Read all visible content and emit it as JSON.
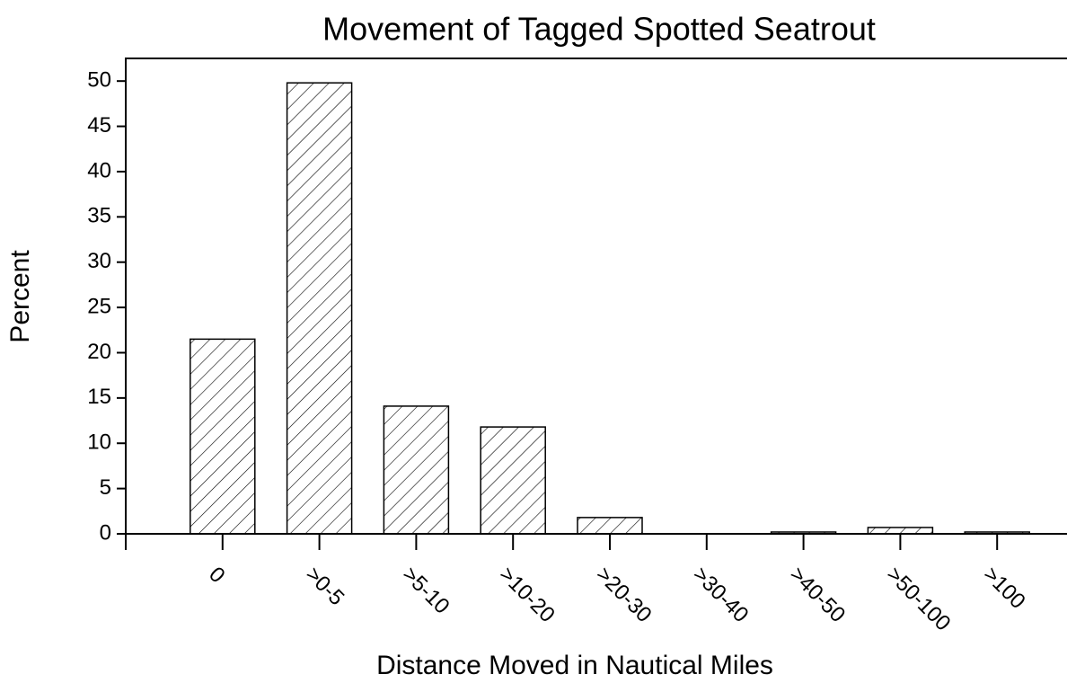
{
  "chart_data": {
    "type": "bar",
    "title": "Movement of Tagged Spotted Seatrout",
    "x_label": "Distance Moved in Nautical Miles",
    "y_label": "Percent",
    "categories": [
      "0",
      ">0-5",
      ">5-10",
      ">10-20",
      ">20-30",
      ">30-40",
      ">40-50",
      ">50-100",
      ">100"
    ],
    "values": [
      21.5,
      49.8,
      14.1,
      11.8,
      1.8,
      0,
      0.2,
      0.7,
      0.2
    ],
    "color": "#000000",
    "hatch": true,
    "ylim": [
      0,
      52.5
    ],
    "yticks": [
      0,
      5,
      10,
      15,
      20,
      25,
      30,
      35,
      40,
      45,
      50
    ],
    "grid": false
  }
}
